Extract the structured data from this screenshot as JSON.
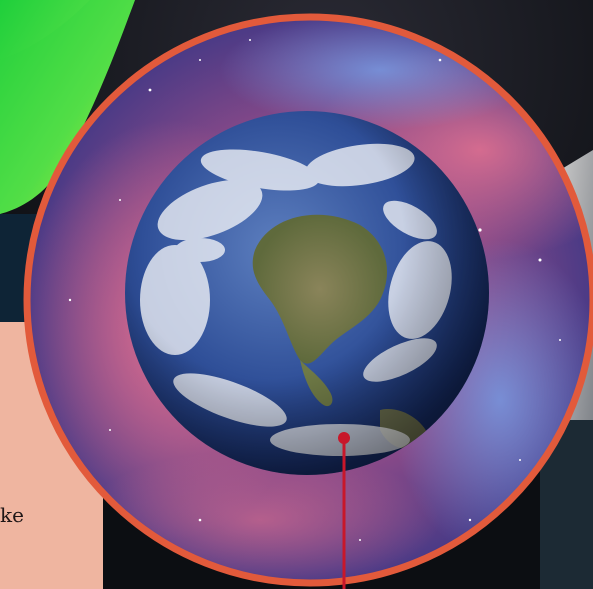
{
  "side_panel": {
    "text": "ke"
  },
  "colors": {
    "circle_border": "#e25a3b",
    "pointer": "#c8172a",
    "side_panel": "#efb5a0",
    "ocean": "#2c4f9a",
    "land": "#7e7a4c",
    "nebula_pink": "#d0587a",
    "nebula_blue": "#3b3d8c",
    "green_band": "#2ed43e"
  }
}
